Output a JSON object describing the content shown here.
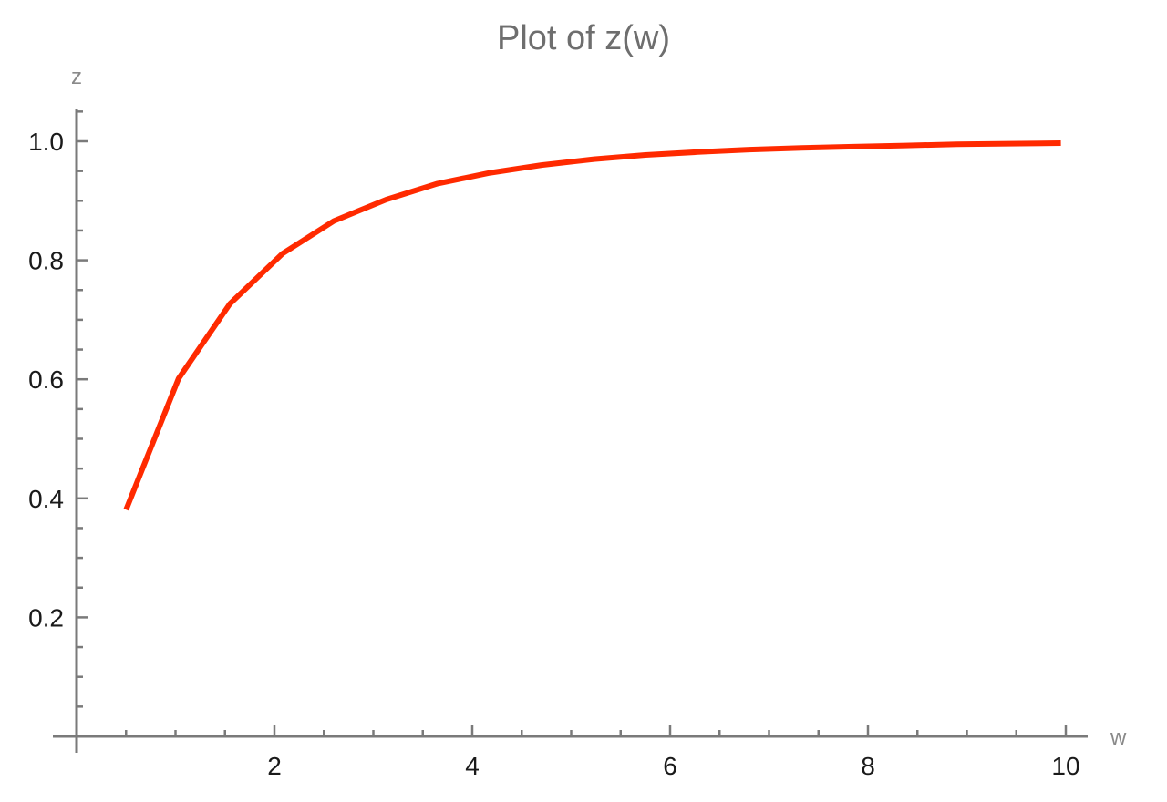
{
  "chart_data": {
    "type": "line",
    "title": "Plot of z(w)",
    "xlabel": "w",
    "ylabel": "z",
    "xlim": [
      0,
      10.05
    ],
    "ylim": [
      0,
      1.05
    ],
    "x_ticks": [
      2,
      4,
      6,
      8,
      10
    ],
    "y_ticks": [
      0.2,
      0.4,
      0.6,
      0.8,
      1.0
    ],
    "x_tick_labels": [
      "2",
      "4",
      "6",
      "8",
      "10"
    ],
    "y_tick_labels": [
      "0.2",
      "0.4",
      "0.6",
      "0.8",
      "1.0"
    ],
    "x_minor_step": 0.5,
    "y_minor_step": 0.05,
    "grid": false,
    "series": [
      {
        "color": "#ff2a00",
        "x": [
          0.5,
          1.03,
          1.55,
          2.08,
          2.6,
          3.13,
          3.65,
          4.18,
          4.7,
          5.23,
          5.75,
          6.28,
          6.8,
          7.33,
          7.85,
          8.38,
          8.9,
          9.43,
          9.95
        ],
        "y": [
          0.381,
          0.601,
          0.727,
          0.811,
          0.866,
          0.902,
          0.929,
          0.947,
          0.96,
          0.97,
          0.977,
          0.982,
          0.986,
          0.989,
          0.991,
          0.993,
          0.995,
          0.996,
          0.997
        ]
      }
    ]
  }
}
